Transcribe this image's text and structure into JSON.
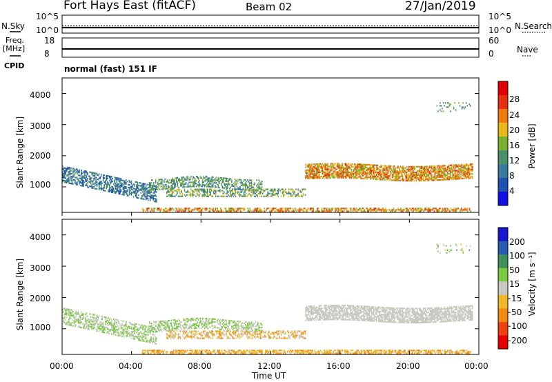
{
  "header": {
    "station": "Fort Hays East (fitACF)",
    "beam": "Beam 02",
    "date": "27/Jan/2019"
  },
  "top_panels": {
    "nsky_label": "N.Sky",
    "nsearch_label": "N.Search",
    "noise_ticks": [
      "10^5",
      "10^0"
    ],
    "noise_ticks_right": [
      "10^5",
      "10^0"
    ],
    "freq_label": "Freq.",
    "freq_unit": "[MHz]",
    "freq_ticks": [
      "18",
      "8"
    ],
    "nave_label": "Nave",
    "nave_ticks": [
      "60",
      "0"
    ],
    "cpid_label": "CPID",
    "cpid_text": "normal (fast) 151 IF"
  },
  "colors": {
    "power": [
      "#1010e0",
      "#2050b0",
      "#3a7a9a",
      "#4a8f6a",
      "#7ab030",
      "#e8b818",
      "#f07a10",
      "#e83010",
      "#e00000"
    ],
    "velocity": [
      "#1818d0",
      "#2a5ab0",
      "#3f8f5a",
      "#78c840",
      "#c8c8c0",
      "#f0b828",
      "#f08a10",
      "#f04010",
      "#e80000"
    ]
  },
  "chart_data": [
    {
      "type": "heatmap",
      "name": "power",
      "ylabel": "Slant Range [km]",
      "ylim": [
        180,
        4500
      ],
      "yticks": [
        1000,
        2000,
        3000,
        4000
      ],
      "xlim": [
        0,
        24
      ],
      "x_ticks": [
        0,
        4,
        8,
        12,
        16,
        20,
        24
      ],
      "colorbar": {
        "label": "Power [dB]",
        "ticks": [
          "28",
          "24",
          "20",
          "16",
          "12",
          "8",
          "4"
        ],
        "range": [
          0,
          32
        ]
      }
    },
    {
      "type": "heatmap",
      "name": "velocity",
      "ylabel": "Slant Range [km]",
      "ylim": [
        180,
        4500
      ],
      "yticks": [
        1000,
        2000,
        3000,
        4000
      ],
      "xlim": [
        0,
        24
      ],
      "x_ticks": [
        0,
        4,
        8,
        12,
        16,
        20,
        24
      ],
      "colorbar": {
        "label": "Velocity [m s⁻¹]",
        "ticks": [
          "200",
          "100",
          "50",
          "15",
          "−15",
          "−50",
          "−100",
          "−200"
        ]
      }
    }
  ],
  "x_tick_labels": [
    "00:00",
    "04:00",
    "08:00",
    "12:00",
    "16:00",
    "20:00",
    "00:00"
  ],
  "xlabel": "Time UT",
  "range_ticks_text": [
    "1000",
    "2000",
    "3000",
    "4000"
  ]
}
